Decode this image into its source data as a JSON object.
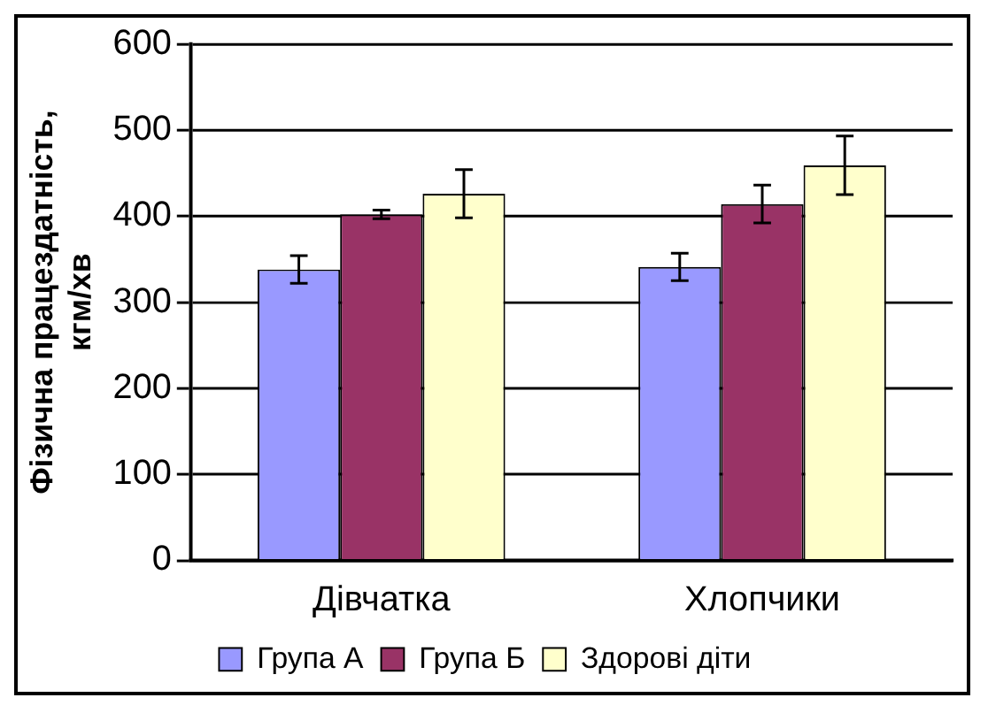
{
  "chart_data": {
    "type": "bar",
    "ylabel": "Фізична працездатність, кгм/хв",
    "categories": [
      "Дівчатка",
      "Хлопчики"
    ],
    "series": [
      {
        "name": "Група А",
        "color": "#9999ff",
        "values": [
          338,
          341
        ],
        "errors": [
          16,
          16
        ]
      },
      {
        "name": "Група Б",
        "color": "#993366",
        "values": [
          402,
          414
        ],
        "errors": [
          5,
          22
        ]
      },
      {
        "name": "Здорові діти",
        "color": "#ffffcc",
        "values": [
          426,
          459
        ],
        "errors": [
          28,
          34
        ]
      }
    ],
    "ylim": [
      0,
      600
    ],
    "yticks": [
      0,
      100,
      200,
      300,
      400,
      500,
      600
    ],
    "grid": "y",
    "legend": "bottom"
  }
}
